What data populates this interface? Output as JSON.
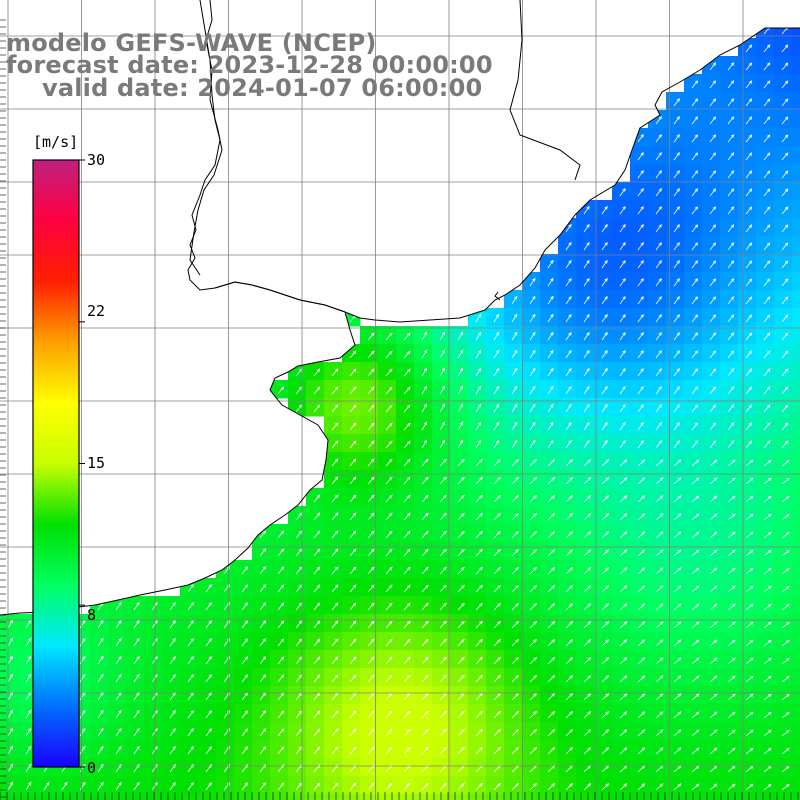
{
  "title": {
    "model": "modelo GEFS-WAVE (NCEP)",
    "forecast": "forecast date: 2023-12-28 00:00:00",
    "valid": "valid date: 2024-01-07 06:00:00"
  },
  "colorbar": {
    "unit": "[m/s]",
    "min": 0,
    "max": 30,
    "tick_labels": [
      "30",
      "22",
      "15",
      "8",
      "0"
    ],
    "tick_values": [
      30,
      22,
      15,
      8,
      0
    ],
    "stops": [
      "#1a00ff",
      "#0070ff",
      "#00e8ff",
      "#00ff60",
      "#00e000",
      "#c8ff00",
      "#ffff00",
      "#ffa000",
      "#ff2000",
      "#ff0040",
      "#c02080"
    ]
  },
  "map": {
    "variable": "wind speed",
    "land_color": "#ffffff",
    "grid_color": "#808080",
    "vector_color": "#ffffff"
  }
}
